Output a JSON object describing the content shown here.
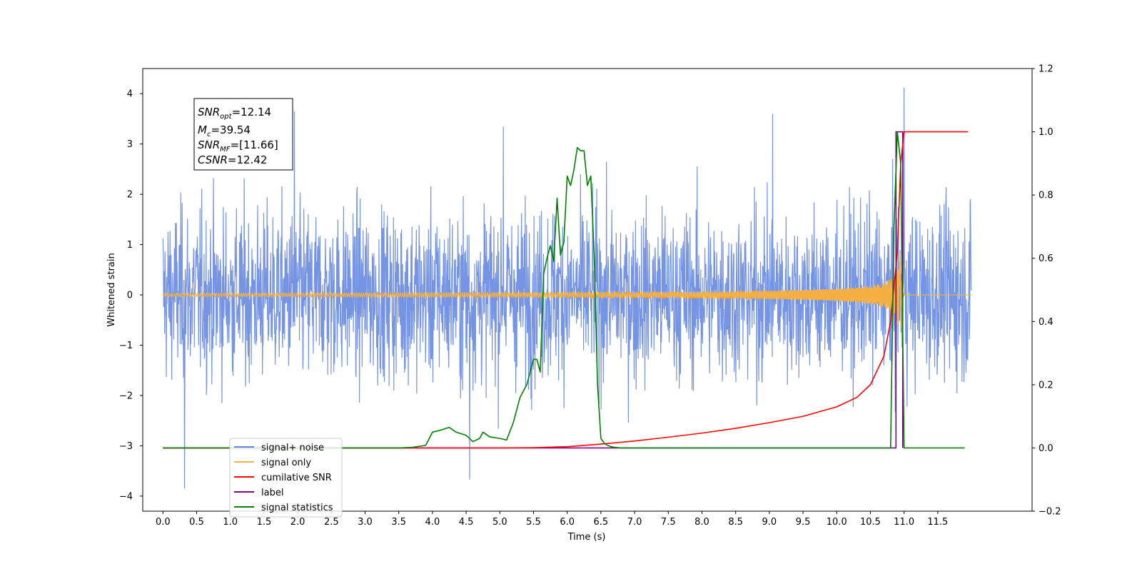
{
  "chart_data": {
    "type": "line",
    "xlabel": "Time (s)",
    "ylabel": "Whitened strain",
    "xlim": [
      -0.3,
      12.9
    ],
    "ylim": [
      -4.3,
      4.5
    ],
    "y2lim": [
      -0.2,
      1.2
    ],
    "x_ticks": [
      "0.0",
      "0.5",
      "1.0",
      "1.5",
      "2.0",
      "2.5",
      "3.0",
      "3.5",
      "4.0",
      "4.5",
      "5.0",
      "5.5",
      "6.0",
      "6.5",
      "7.0",
      "7.5",
      "8.0",
      "8.5",
      "9.0",
      "9.5",
      "10.0",
      "10.5",
      "11.0",
      "11.5"
    ],
    "y_ticks": [
      "4",
      "3",
      "2",
      "1",
      "0",
      "−1",
      "−2",
      "−3",
      "−4"
    ],
    "y2_ticks": [
      "1.2",
      "1.0",
      "0.8",
      "0.6",
      "0.4",
      "0.2",
      "0.0",
      "−0.2"
    ],
    "grid": false,
    "legend_position": "lower-left",
    "annotation": {
      "snr_opt": {
        "name": "SNR",
        "sub": "opt",
        "value": "=12.14"
      },
      "mc": {
        "name": "M",
        "sub": "c",
        "value": "=39.54"
      },
      "snr_mf": {
        "name": "SNR",
        "sub": "MF",
        "value": "=[11.66]"
      },
      "csnr": {
        "name": "CSNR",
        "value": "=12.42"
      }
    },
    "series": [
      {
        "name": "signal+ noise",
        "axis": "left",
        "color": "#6688e0",
        "style": "noise",
        "x_range": [
          0.0,
          12.0
        ],
        "y_extent": [
          -3.85,
          4.12
        ],
        "spikes": [
          [
            0.32,
            -3.85
          ],
          [
            4.55,
            -3.67
          ],
          [
            11.0,
            4.12
          ],
          [
            1.95,
            3.65
          ],
          [
            9.05,
            3.6
          ],
          [
            5.05,
            3.35
          ]
        ]
      },
      {
        "name": "signal only",
        "axis": "left",
        "color": "#f5b041",
        "style": "chirp",
        "x_range": [
          0.0,
          12.0
        ],
        "merger_time": 10.95,
        "peak_amplitude": 1.05
      },
      {
        "name": "cumilative SNR",
        "axis": "right",
        "color": "#ff0000",
        "x": [
          0.0,
          5.0,
          5.5,
          6.0,
          6.5,
          7.0,
          7.5,
          8.0,
          8.5,
          9.0,
          9.5,
          10.0,
          10.3,
          10.5,
          10.7,
          10.8,
          10.9,
          10.95,
          11.0,
          11.95
        ],
        "y": [
          0.0,
          0.0,
          0.001,
          0.004,
          0.012,
          0.022,
          0.034,
          0.047,
          0.062,
          0.08,
          0.1,
          0.13,
          0.16,
          0.2,
          0.29,
          0.4,
          0.62,
          0.9,
          1.0,
          1.0
        ]
      },
      {
        "name": "label",
        "axis": "right",
        "color": "#800080",
        "x": [
          0.0,
          10.88,
          10.88,
          10.98,
          10.98
        ],
        "y": [
          0.0,
          0.0,
          1.0,
          1.0,
          0.0
        ]
      },
      {
        "name": "signal statistics",
        "axis": "right",
        "color": "#008000",
        "x": [
          0.0,
          3.5,
          3.7,
          3.9,
          4.0,
          4.1,
          4.25,
          4.35,
          4.5,
          4.6,
          4.7,
          4.75,
          4.85,
          5.0,
          5.1,
          5.2,
          5.3,
          5.4,
          5.5,
          5.55,
          5.6,
          5.65,
          5.7,
          5.75,
          5.8,
          5.85,
          5.9,
          5.95,
          6.0,
          6.05,
          6.1,
          6.15,
          6.2,
          6.25,
          6.3,
          6.35,
          6.4,
          6.45,
          6.5,
          6.55,
          6.6,
          6.65,
          6.7,
          6.8,
          10.8,
          10.85,
          10.9,
          10.95,
          11.0,
          11.05,
          11.9
        ],
        "y": [
          0.0,
          0.0,
          0.002,
          0.008,
          0.05,
          0.055,
          0.065,
          0.05,
          0.04,
          0.02,
          0.03,
          0.05,
          0.035,
          0.03,
          0.025,
          0.08,
          0.16,
          0.2,
          0.28,
          0.28,
          0.24,
          0.55,
          0.6,
          0.64,
          0.59,
          0.79,
          0.61,
          0.65,
          0.86,
          0.83,
          0.88,
          0.95,
          0.94,
          0.94,
          0.83,
          0.86,
          0.61,
          0.2,
          0.03,
          0.015,
          0.008,
          0.004,
          0.002,
          0.0,
          0.0,
          0.7,
          1.0,
          0.9,
          0.0,
          0.0,
          0.0
        ]
      }
    ]
  },
  "legend": [
    {
      "label": "signal+ noise",
      "color": "#6688e0"
    },
    {
      "label": "signal only",
      "color": "#f5b041"
    },
    {
      "label": "cumilative SNR",
      "color": "#ff0000"
    },
    {
      "label": "label",
      "color": "#800080"
    },
    {
      "label": "signal statistics",
      "color": "#008000"
    }
  ]
}
